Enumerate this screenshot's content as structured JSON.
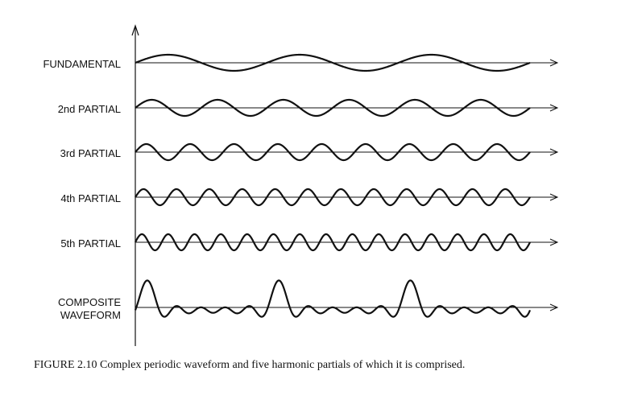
{
  "rows": [
    {
      "label": "FUNDAMENTAL",
      "harmonic": 1
    },
    {
      "label": "2nd PARTIAL",
      "harmonic": 2
    },
    {
      "label": "3rd PARTIAL",
      "harmonic": 3
    },
    {
      "label": "4th PARTIAL",
      "harmonic": 4
    },
    {
      "label": "5th PARTIAL",
      "harmonic": 5
    }
  ],
  "composite": {
    "label_line1": "COMPOSITE",
    "label_line2": "WAVEFORM",
    "harmonics": [
      1,
      2,
      3,
      4,
      5
    ]
  },
  "cycles_of_fundamental": 3,
  "caption": "FIGURE 2.10  Complex periodic waveform and five harmonic partials of which it is comprised."
}
